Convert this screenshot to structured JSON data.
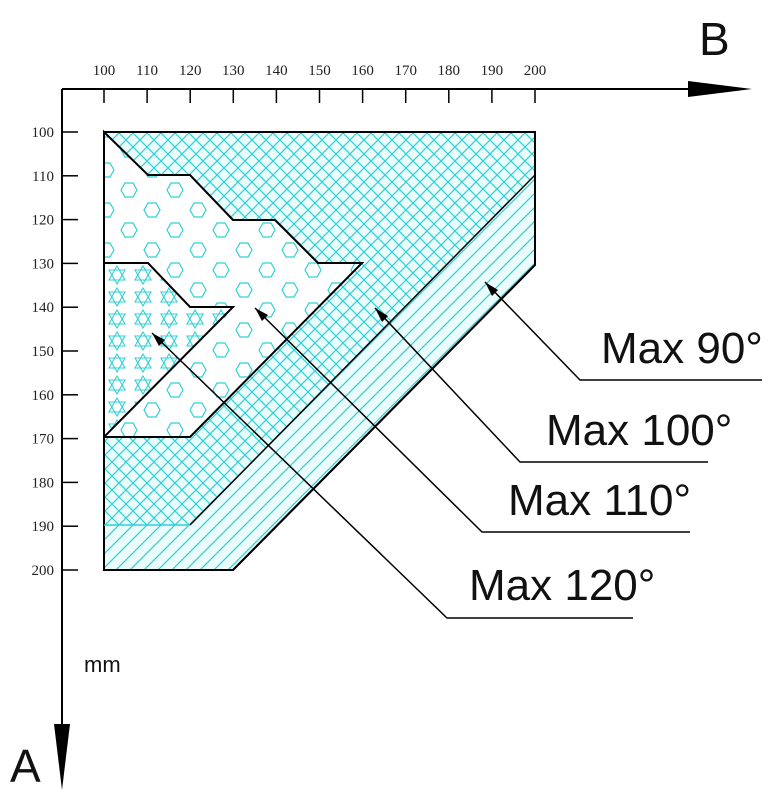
{
  "axes": {
    "horizontal_letter": "B",
    "vertical_letter": "A",
    "unit": "mm",
    "x_ticks": [
      "100",
      "110",
      "120",
      "130",
      "140",
      "150",
      "160",
      "170",
      "180",
      "190",
      "200"
    ],
    "y_ticks": [
      "100",
      "110",
      "120",
      "130",
      "140",
      "150",
      "160",
      "170",
      "180",
      "190",
      "200"
    ]
  },
  "zones": [
    {
      "label": "Max 90°",
      "pattern": "diagonal-lines"
    },
    {
      "label": "Max 100°",
      "pattern": "crosshatch"
    },
    {
      "label": "Max 110°",
      "pattern": "hexagons"
    },
    {
      "label": "Max 120°",
      "pattern": "stars"
    }
  ],
  "colors": {
    "hatch": "#2fd0d6",
    "fill": "#e9fbfb",
    "outline": "#000000"
  }
}
